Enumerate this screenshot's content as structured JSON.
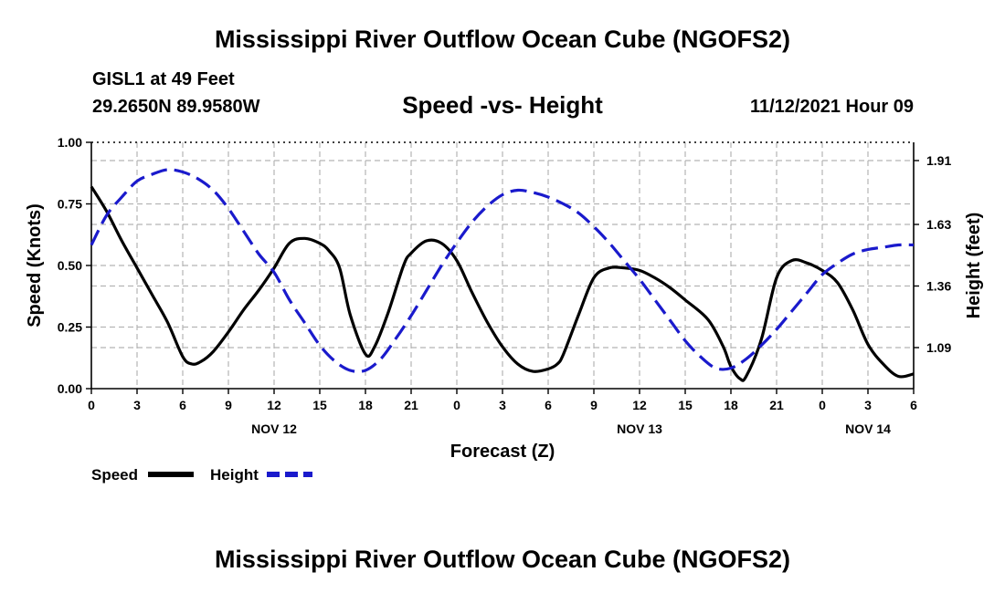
{
  "title": "Mississippi River Outflow Ocean Cube (NGOFS2)",
  "station": "GISL1 at 49 Feet",
  "coords": "29.2650N  89.9580W",
  "subtitle": "Speed -vs- Height",
  "timestamp": "11/12/2021 Hour 09",
  "footer_title": "Mississippi River Outflow Ocean Cube (NGOFS2)",
  "colors": {
    "speed": "#000000",
    "height": "#1a1acc",
    "grid": "#b4b4b4"
  },
  "chart_data": {
    "type": "line",
    "xlabel": "Forecast (Z)",
    "ylabel_left": "Speed (Knots)",
    "ylabel_right": "Height (feet)",
    "xlim": [
      0,
      54
    ],
    "ylim_left": [
      0,
      1.0
    ],
    "ylim_right": [
      0.91,
      1.99
    ],
    "x_tick_values": [
      0,
      3,
      6,
      9,
      12,
      15,
      18,
      21,
      24,
      27,
      30,
      33,
      36,
      39,
      42,
      45,
      48,
      51,
      54
    ],
    "x_tick_labels": [
      "0",
      "3",
      "6",
      "9",
      "12",
      "15",
      "18",
      "21",
      "0",
      "3",
      "6",
      "9",
      "12",
      "15",
      "18",
      "21",
      "0",
      "3",
      "6"
    ],
    "date_labels": [
      {
        "x": 12,
        "label": "NOV 12"
      },
      {
        "x": 36,
        "label": "NOV 13"
      },
      {
        "x": 51,
        "label": "NOV 14"
      }
    ],
    "y_left_ticks": [
      "0.00",
      "0.25",
      "0.50",
      "0.75",
      "1.00"
    ],
    "y_left_tick_values": [
      0,
      0.25,
      0.5,
      0.75,
      1.0
    ],
    "y_right_ticks": [
      "1.09",
      "1.36",
      "1.63",
      "1.91"
    ],
    "y_right_tick_values": [
      1.09,
      1.36,
      1.63,
      1.91
    ],
    "legend": [
      {
        "name": "Speed",
        "style": "solid"
      },
      {
        "name": "Height",
        "style": "dashed"
      }
    ],
    "series": [
      {
        "name": "Speed",
        "axis": "left",
        "style": "solid",
        "x": [
          0,
          1,
          2,
          3,
          4,
          5,
          6,
          6.6,
          7.2,
          8,
          9,
          10,
          11,
          12,
          13,
          14,
          15,
          15.6,
          16.3,
          17,
          18,
          18.6,
          19.5,
          20.5,
          21,
          22,
          23,
          24,
          25,
          26,
          27,
          28,
          29,
          30,
          30.6,
          31,
          32,
          33,
          34,
          35,
          36,
          37,
          38,
          39,
          40.5,
          41.5,
          42,
          42.6,
          43,
          44,
          45,
          46,
          47,
          48,
          49,
          50,
          51,
          52,
          53,
          54
        ],
        "values": [
          0.82,
          0.72,
          0.6,
          0.49,
          0.38,
          0.27,
          0.13,
          0.1,
          0.11,
          0.15,
          0.23,
          0.32,
          0.4,
          0.49,
          0.59,
          0.61,
          0.59,
          0.56,
          0.49,
          0.3,
          0.14,
          0.17,
          0.31,
          0.5,
          0.55,
          0.6,
          0.59,
          0.52,
          0.39,
          0.27,
          0.17,
          0.1,
          0.07,
          0.08,
          0.1,
          0.14,
          0.3,
          0.45,
          0.49,
          0.49,
          0.48,
          0.45,
          0.41,
          0.36,
          0.28,
          0.17,
          0.09,
          0.04,
          0.05,
          0.2,
          0.45,
          0.52,
          0.51,
          0.48,
          0.43,
          0.32,
          0.18,
          0.1,
          0.05,
          0.06
        ]
      },
      {
        "name": "Height",
        "axis": "right",
        "style": "dashed",
        "x": [
          0,
          1,
          2,
          3,
          4,
          5,
          6,
          7,
          8,
          9,
          10,
          11,
          12,
          13,
          14,
          15,
          16,
          17,
          18,
          19,
          20,
          21,
          22,
          23,
          24,
          25,
          26,
          27,
          28,
          29,
          30,
          31,
          32,
          33,
          34,
          35,
          36,
          37,
          38,
          39,
          40,
          41,
          42,
          43,
          44,
          45,
          46,
          47,
          48,
          49,
          50,
          51,
          52,
          53,
          54
        ],
        "values": [
          1.54,
          1.67,
          1.75,
          1.82,
          1.85,
          1.87,
          1.86,
          1.83,
          1.78,
          1.7,
          1.6,
          1.5,
          1.42,
          1.3,
          1.2,
          1.1,
          1.03,
          0.99,
          0.99,
          1.04,
          1.13,
          1.23,
          1.34,
          1.45,
          1.55,
          1.64,
          1.71,
          1.76,
          1.78,
          1.77,
          1.75,
          1.72,
          1.68,
          1.62,
          1.55,
          1.47,
          1.39,
          1.3,
          1.21,
          1.12,
          1.05,
          1.0,
          1.0,
          1.04,
          1.1,
          1.17,
          1.25,
          1.33,
          1.41,
          1.46,
          1.5,
          1.52,
          1.53,
          1.54,
          1.54
        ]
      }
    ]
  }
}
